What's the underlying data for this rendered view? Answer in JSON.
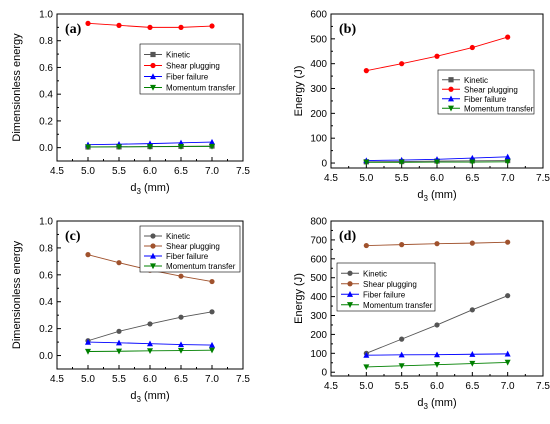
{
  "chart_data": [
    {
      "panel_label": "(a)",
      "type": "line",
      "xlabel_main": "d",
      "xlabel_sub": "3",
      "xlabel_unit": " (mm)",
      "ylabel": "Dimensionless energy",
      "xlim": [
        4.5,
        7.5
      ],
      "ylim": [
        -0.1,
        1.0
      ],
      "xticks": [
        "4.5",
        "5.0",
        "5.5",
        "6.0",
        "6.5",
        "7.0",
        "7.5"
      ],
      "yticks": [
        "0.0",
        "0.2",
        "0.4",
        "0.6",
        "0.8",
        "1.0"
      ],
      "legend_position": "center-right",
      "x": [
        5.0,
        5.5,
        6.0,
        6.5,
        7.0
      ],
      "series": [
        {
          "name": "Kinetic",
          "color": "#555555",
          "marker": "square",
          "values": [
            0.005,
            0.006,
            0.008,
            0.01,
            0.012
          ]
        },
        {
          "name": "Shear plugging",
          "color": "#ff0000",
          "marker": "circle",
          "values": [
            0.93,
            0.915,
            0.9,
            0.9,
            0.91
          ]
        },
        {
          "name": "Fiber failure",
          "color": "#0000ff",
          "marker": "triangle-up",
          "values": [
            0.022,
            0.026,
            0.03,
            0.036,
            0.042
          ]
        },
        {
          "name": "Momentum transfer",
          "color": "#008000",
          "marker": "triangle-down",
          "values": [
            0.005,
            0.006,
            0.007,
            0.008,
            0.009
          ]
        }
      ]
    },
    {
      "panel_label": "(b)",
      "type": "line",
      "xlabel_main": "d",
      "xlabel_sub": "3",
      "xlabel_unit": " (mm)",
      "ylabel": "Energy (J)",
      "xlim": [
        4.5,
        7.5
      ],
      "ylim": [
        -20,
        600
      ],
      "xticks": [
        "4.5",
        "5.0",
        "5.5",
        "6.0",
        "6.5",
        "7.0",
        "7.5"
      ],
      "yticks": [
        "0",
        "100",
        "200",
        "300",
        "400",
        "500",
        "600"
      ],
      "legend_position": "center-right",
      "x": [
        5.0,
        5.5,
        6.0,
        6.5,
        7.0
      ],
      "series": [
        {
          "name": "Kinetic",
          "color": "#555555",
          "marker": "square",
          "values": [
            5,
            6,
            8,
            9,
            10
          ]
        },
        {
          "name": "Shear plugging",
          "color": "#ff0000",
          "marker": "circle",
          "values": [
            372,
            400,
            430,
            465,
            507
          ]
        },
        {
          "name": "Fiber failure",
          "color": "#0000ff",
          "marker": "triangle-up",
          "values": [
            10,
            12,
            15,
            20,
            25
          ]
        },
        {
          "name": "Momentum transfer",
          "color": "#008000",
          "marker": "triangle-down",
          "values": [
            3,
            3,
            4,
            4,
            5
          ]
        }
      ]
    },
    {
      "panel_label": "(c)",
      "type": "line",
      "xlabel_main": "d",
      "xlabel_sub": "3",
      "xlabel_unit": " (mm)",
      "ylabel": "Dimensionless energy",
      "xlim": [
        4.5,
        7.5
      ],
      "ylim": [
        -0.1,
        1.0
      ],
      "xticks": [
        "4.5",
        "5.0",
        "5.5",
        "6.0",
        "6.5",
        "7.0",
        "7.5"
      ],
      "yticks": [
        "0.0",
        "0.2",
        "0.4",
        "0.6",
        "0.8",
        "1.0"
      ],
      "legend_position": "top-right",
      "x": [
        5.0,
        5.5,
        6.0,
        6.5,
        7.0
      ],
      "series": [
        {
          "name": "Kinetic",
          "color": "#555555",
          "marker": "circle",
          "values": [
            0.11,
            0.18,
            0.235,
            0.285,
            0.325
          ]
        },
        {
          "name": "Shear plugging",
          "color": "#a0522d",
          "marker": "circle",
          "values": [
            0.75,
            0.69,
            0.635,
            0.59,
            0.55
          ]
        },
        {
          "name": "Fiber failure",
          "color": "#0000ff",
          "marker": "triangle-up",
          "values": [
            0.1,
            0.095,
            0.088,
            0.082,
            0.078
          ]
        },
        {
          "name": "Momentum transfer",
          "color": "#008000",
          "marker": "triangle-down",
          "values": [
            0.03,
            0.032,
            0.035,
            0.037,
            0.04
          ]
        }
      ]
    },
    {
      "panel_label": "(d)",
      "type": "line",
      "xlabel_main": "d",
      "xlabel_sub": "3",
      "xlabel_unit": " (mm)",
      "ylabel": "Energy (J)",
      "xlim": [
        4.5,
        7.5
      ],
      "ylim": [
        -20,
        800
      ],
      "xticks": [
        "4.5",
        "5.0",
        "5.5",
        "6.0",
        "6.5",
        "7.0",
        "7.5"
      ],
      "yticks": [
        "0",
        "100",
        "200",
        "300",
        "400",
        "500",
        "600",
        "700",
        "800"
      ],
      "legend_position": "center-left",
      "x": [
        5.0,
        5.5,
        6.0,
        6.5,
        7.0
      ],
      "series": [
        {
          "name": "Kinetic",
          "color": "#555555",
          "marker": "circle",
          "values": [
            100,
            175,
            250,
            330,
            405
          ]
        },
        {
          "name": "Shear plugging",
          "color": "#a0522d",
          "marker": "circle",
          "values": [
            670,
            675,
            680,
            683,
            688
          ]
        },
        {
          "name": "Fiber failure",
          "color": "#0000ff",
          "marker": "triangle-up",
          "values": [
            90,
            92,
            93,
            95,
            97
          ]
        },
        {
          "name": "Momentum transfer",
          "color": "#008000",
          "marker": "triangle-down",
          "values": [
            28,
            34,
            40,
            46,
            52
          ]
        }
      ]
    }
  ]
}
